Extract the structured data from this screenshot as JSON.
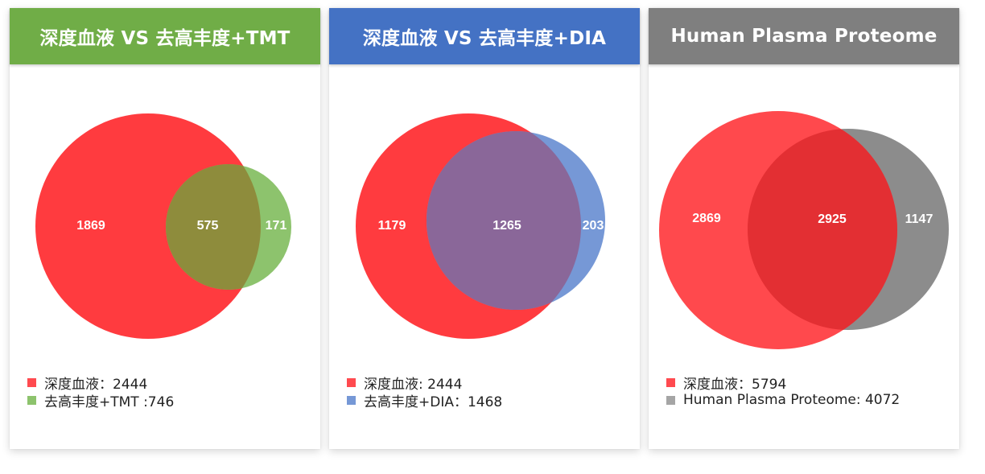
{
  "panels": [
    {
      "title": "深度血液 VS 去高丰度+TMT",
      "header_color": "#70AD47",
      "left_color": "#FF3B3F",
      "right_color": "#8DC36D",
      "overlap_color": "#8E8C3C",
      "counts": {
        "left_only": "1869",
        "overlap": "575",
        "right_only": "171"
      },
      "legend": [
        {
          "text": "深度血液：2444",
          "color": "#FF4A4F"
        },
        {
          "text": "去高丰度+TMT :746",
          "color": "#8DC36D"
        }
      ]
    },
    {
      "title": "深度血液 VS 去高丰度+DIA",
      "header_color": "#4472C4",
      "left_color": "#FF3B3F",
      "right_color": "#7698D6",
      "overlap_color": "#8A6799",
      "counts": {
        "left_only": "1179",
        "overlap": "1265",
        "right_only": "203"
      },
      "legend": [
        {
          "text": "深度血液: 2444",
          "color": "#FF4A4F"
        },
        {
          "text": "去高丰度+DIA：1468",
          "color": "#7698D6"
        }
      ]
    },
    {
      "title": "Human Plasma Proteome",
      "header_color": "#7F7F7F",
      "left_color": "#FF3B3F",
      "right_color": "#8C8C8C",
      "overlap_color": "#E32F33",
      "counts": {
        "left_only": "2869",
        "overlap": "2925",
        "right_only": "1147"
      },
      "legend": [
        {
          "text": "深度血液：5794",
          "color": "#FF4A4F"
        },
        {
          "text": "Human Plasma Proteome: 4072",
          "color": "#A5A5A5"
        }
      ]
    }
  ]
}
